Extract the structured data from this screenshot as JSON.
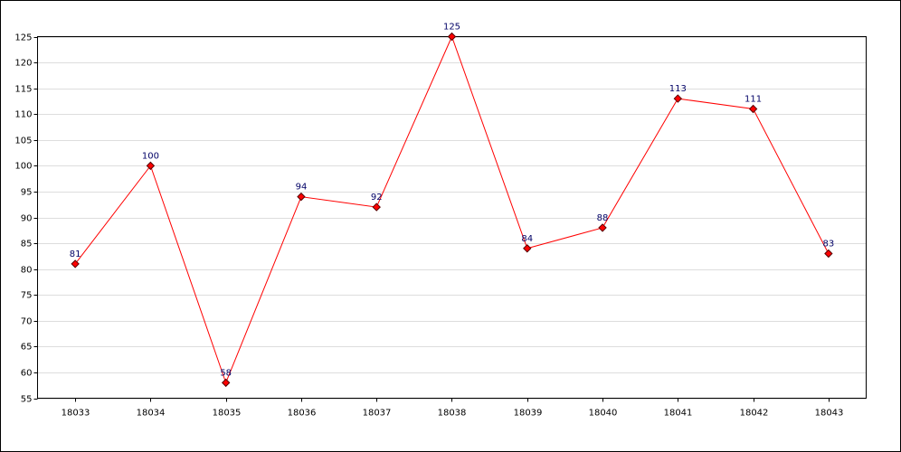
{
  "chart_data": {
    "type": "line",
    "categories": [
      "18033",
      "18034",
      "18035",
      "18036",
      "18037",
      "18038",
      "18039",
      "18040",
      "18041",
      "18042",
      "18043"
    ],
    "series": [
      {
        "name": "series",
        "color": "#ff0000",
        "values": [
          81,
          100,
          58,
          94,
          92,
          125,
          84,
          88,
          113,
          111,
          83
        ]
      }
    ],
    "ylim": [
      55,
      125
    ],
    "yticks": [
      55,
      60,
      65,
      70,
      75,
      80,
      85,
      90,
      95,
      100,
      105,
      110,
      115,
      120,
      125
    ],
    "grid": true
  }
}
